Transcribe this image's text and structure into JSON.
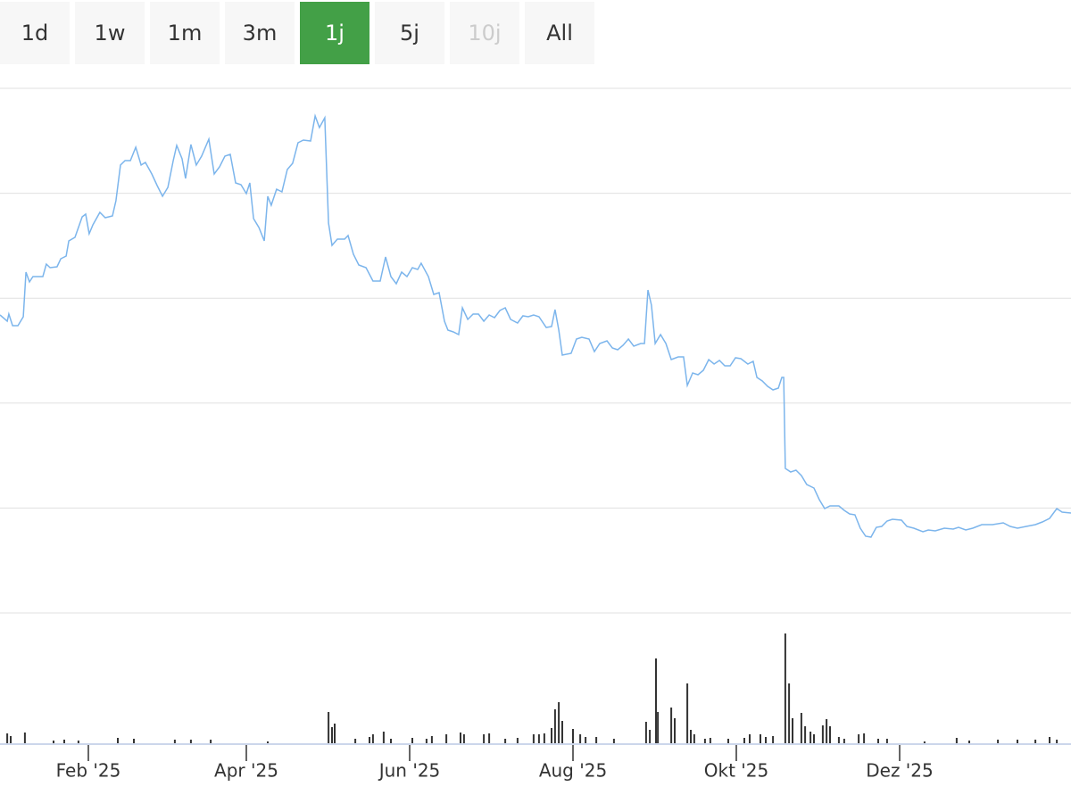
{
  "buttons": [
    "1d",
    "1w",
    "1m",
    "3m",
    "1j",
    "5j",
    "10j",
    "All"
  ],
  "active_index": 4,
  "disabled_index": 6,
  "chart_data": [
    {
      "type": "line",
      "color": "#7cb5ec",
      "grid": true,
      "xlim": [
        -2,
        398
      ],
      "ylim": [
        0,
        58.8
      ],
      "x": [
        -2,
        0.7,
        1.3,
        2.7,
        4.7,
        6.7,
        7.7,
        9,
        10.3,
        14,
        15.3,
        16.7,
        19.3,
        20.7,
        22.7,
        23.7,
        26,
        28.7,
        30,
        31.3,
        32.7,
        35.3,
        37.3,
        40,
        41.3,
        43,
        44.7,
        46.7,
        48.7,
        50.7,
        52.3,
        54.7,
        56.7,
        58.7,
        60.7,
        62.7,
        64,
        66,
        67.3,
        69.3,
        71.3,
        73.3,
        76,
        78,
        80,
        82,
        84,
        86,
        88,
        90,
        91.3,
        92.7,
        94.7,
        96.7,
        98,
        99.3,
        101.3,
        103.3,
        105.3,
        107.3,
        109.3,
        111.3,
        114,
        115.7,
        117.3,
        119.3,
        120.7,
        122,
        124,
        126.7,
        128,
        130,
        132,
        134.7,
        137.3,
        140,
        142,
        144,
        146,
        148,
        150,
        152,
        154,
        155.3,
        158,
        160,
        162,
        164,
        165.3,
        167.3,
        169.3,
        170.7,
        172.7,
        174.7,
        176.7,
        178.7,
        180.7,
        182.7,
        184.7,
        186.7,
        188.7,
        191.3,
        193.3,
        195.3,
        197.3,
        199.3,
        202,
        204,
        205.3,
        206.7,
        208,
        211.3,
        213.3,
        215.3,
        218,
        220,
        222,
        224.7,
        226.7,
        228.7,
        230.7,
        232.7,
        234.7,
        237.3,
        238.7,
        240,
        241.3,
        242.7,
        244.7,
        246.7,
        248.7,
        251.3,
        253.3,
        254.7,
        256.7,
        258.7,
        260.7,
        262.7,
        264.7,
        266.7,
        268.7,
        270.7,
        272.7,
        274.7,
        277.3,
        279.3,
        280.7,
        282.7,
        284.7,
        286.7,
        288.7,
        290,
        290.7,
        291.3,
        293.3,
        295.3,
        297.3,
        299.3,
        302,
        304,
        306,
        308,
        311.3,
        313.3,
        315.3,
        317.3,
        319.3,
        321.3,
        323.3,
        325.3,
        327.3,
        329.3,
        331.3,
        334.7,
        336.7,
        339.3,
        342.7,
        344.7,
        347.3,
        350.7,
        354,
        356,
        358.7,
        361.3,
        364.7,
        368.7,
        372.7,
        375.3,
        378,
        381.3,
        384.7,
        387.3,
        390,
        392.7,
        394.7,
        398
      ],
      "values": [
        33.4,
        32.7,
        33.5,
        32.2,
        32.2,
        33.2,
        38.2,
        37.1,
        37.7,
        37.7,
        39.1,
        38.7,
        38.8,
        39.7,
        40,
        41.7,
        42.1,
        44.4,
        44.7,
        42.5,
        43.5,
        44.9,
        44.3,
        44.5,
        46.2,
        50.2,
        50.7,
        50.7,
        52.2,
        50.2,
        50.5,
        49.2,
        47.9,
        46.7,
        47.7,
        50.7,
        52.4,
        50.9,
        48.7,
        52.5,
        50.2,
        51.2,
        53.1,
        49.2,
        50,
        51.2,
        51.4,
        48.2,
        48,
        47,
        48.2,
        44.2,
        43.2,
        41.7,
        46.7,
        45.7,
        47.5,
        47.2,
        49.7,
        50.4,
        52.7,
        53,
        52.9,
        55.7,
        54.4,
        55.5,
        43.7,
        41.2,
        41.9,
        41.9,
        42.3,
        40.2,
        39,
        38.7,
        37.2,
        37.2,
        39.9,
        37.7,
        36.9,
        38.2,
        37.7,
        38.7,
        38.5,
        39.2,
        37.7,
        35.7,
        35.9,
        32.7,
        31.7,
        31.5,
        31.2,
        34.2,
        32.9,
        33.5,
        33.5,
        32.7,
        33.4,
        33.1,
        33.9,
        34.2,
        32.9,
        32.5,
        33.3,
        33.2,
        33.4,
        33.2,
        32,
        32.1,
        34,
        31.7,
        28.9,
        29.1,
        30.7,
        30.9,
        30.7,
        29.3,
        30.2,
        30.5,
        29.7,
        29.5,
        30,
        30.7,
        29.9,
        30.2,
        30.2,
        36.2,
        34.5,
        30.2,
        31.2,
        30.2,
        28.4,
        28.7,
        28.7,
        25.5,
        26.9,
        26.7,
        27.2,
        28.4,
        27.9,
        28.3,
        27.7,
        27.7,
        28.6,
        28.5,
        27.9,
        28.2,
        26.4,
        26,
        25.4,
        25,
        25.2,
        26.4,
        26.4,
        16.2,
        15.8,
        16,
        15.4,
        14.4,
        14,
        12.7,
        11.7,
        12,
        12,
        11.5,
        11.1,
        11,
        9.5,
        8.6,
        8.5,
        9.6,
        9.7,
        10.3,
        10.5,
        10.4,
        9.7,
        9.5,
        9.1,
        9.3,
        9.2,
        9.5,
        9.4,
        9.6,
        9.3,
        9.5,
        9.9,
        9.9,
        10.1,
        9.7,
        9.5,
        9.7,
        9.9,
        10.2,
        10.6,
        11.7,
        11.3,
        11.2
      ]
    },
    {
      "type": "bar",
      "color": "#333333",
      "xlim": [
        -2,
        398
      ],
      "ylim": [
        0,
        130
      ],
      "x": [
        0.7,
        2,
        7.3,
        18,
        22,
        27.3,
        42,
        48,
        63.3,
        69.3,
        76.7,
        98,
        120.7,
        122,
        123,
        130.7,
        136,
        137.3,
        141.3,
        144,
        152,
        157.3,
        159.3,
        164.7,
        170,
        171.3,
        178.7,
        180.7,
        186.7,
        191.3,
        197.3,
        199.3,
        201.3,
        204,
        205.3,
        206.7,
        208,
        212,
        214.7,
        216.7,
        220.7,
        227.3,
        239.3,
        240.7,
        243,
        243.7,
        248.7,
        250,
        254.7,
        256,
        257.3,
        261.3,
        263.3,
        270,
        276,
        278,
        282,
        284,
        286.7,
        291.3,
        292.7,
        294,
        297.3,
        298.7,
        300.7,
        302,
        305.3,
        306.7,
        308,
        311.3,
        313.3,
        318.7,
        320.7,
        326,
        329.3,
        343.3,
        355.3,
        360,
        370.7,
        378,
        384.7,
        390,
        392.7
      ],
      "values": [
        11,
        8,
        12,
        3,
        4,
        3,
        6,
        5,
        4,
        4,
        4,
        2,
        35,
        18,
        22,
        5,
        7,
        10,
        13,
        5,
        6,
        5,
        8,
        10,
        12,
        10,
        10,
        11,
        5,
        6,
        10,
        10,
        11,
        17,
        38,
        46,
        25,
        16,
        10,
        7,
        7,
        5,
        24,
        15,
        95,
        35,
        40,
        28,
        67,
        15,
        10,
        5,
        6,
        5,
        6,
        10,
        10,
        7,
        8,
        123,
        67,
        28,
        34,
        19,
        13,
        10,
        20,
        27,
        19,
        7,
        5,
        10,
        11,
        5,
        5,
        2,
        6,
        3,
        4,
        4,
        4,
        7,
        4
      ],
      "xticks": [
        {
          "value": 31,
          "label": "Feb '25"
        },
        {
          "value": 90,
          "label": "Apr '25"
        },
        {
          "value": 151,
          "label": "Jun '25"
        },
        {
          "value": 212,
          "label": "Aug '25"
        },
        {
          "value": 273,
          "label": "Okt '25"
        },
        {
          "value": 334,
          "label": "Dez '25"
        }
      ]
    }
  ]
}
